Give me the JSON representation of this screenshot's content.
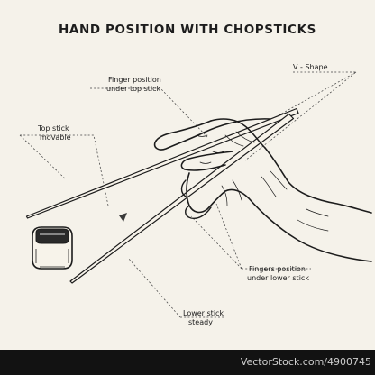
{
  "diagram": {
    "title": "HAND POSITION WITH CHOPSTICKS",
    "labels": {
      "finger_top_line1": "Finger position",
      "finger_top_line2": "under top stick",
      "v_shape": "V - Shape",
      "top_stick_line1": "Top stick",
      "top_stick_line2": "movable",
      "fingers_lower_line1": "Fingers position",
      "fingers_lower_line2": "under lower stick",
      "lower_stick_line1": "Lower stick",
      "lower_stick_line2": "steady"
    }
  },
  "footer": {
    "watermark": "VectorStock.com/4900745"
  }
}
